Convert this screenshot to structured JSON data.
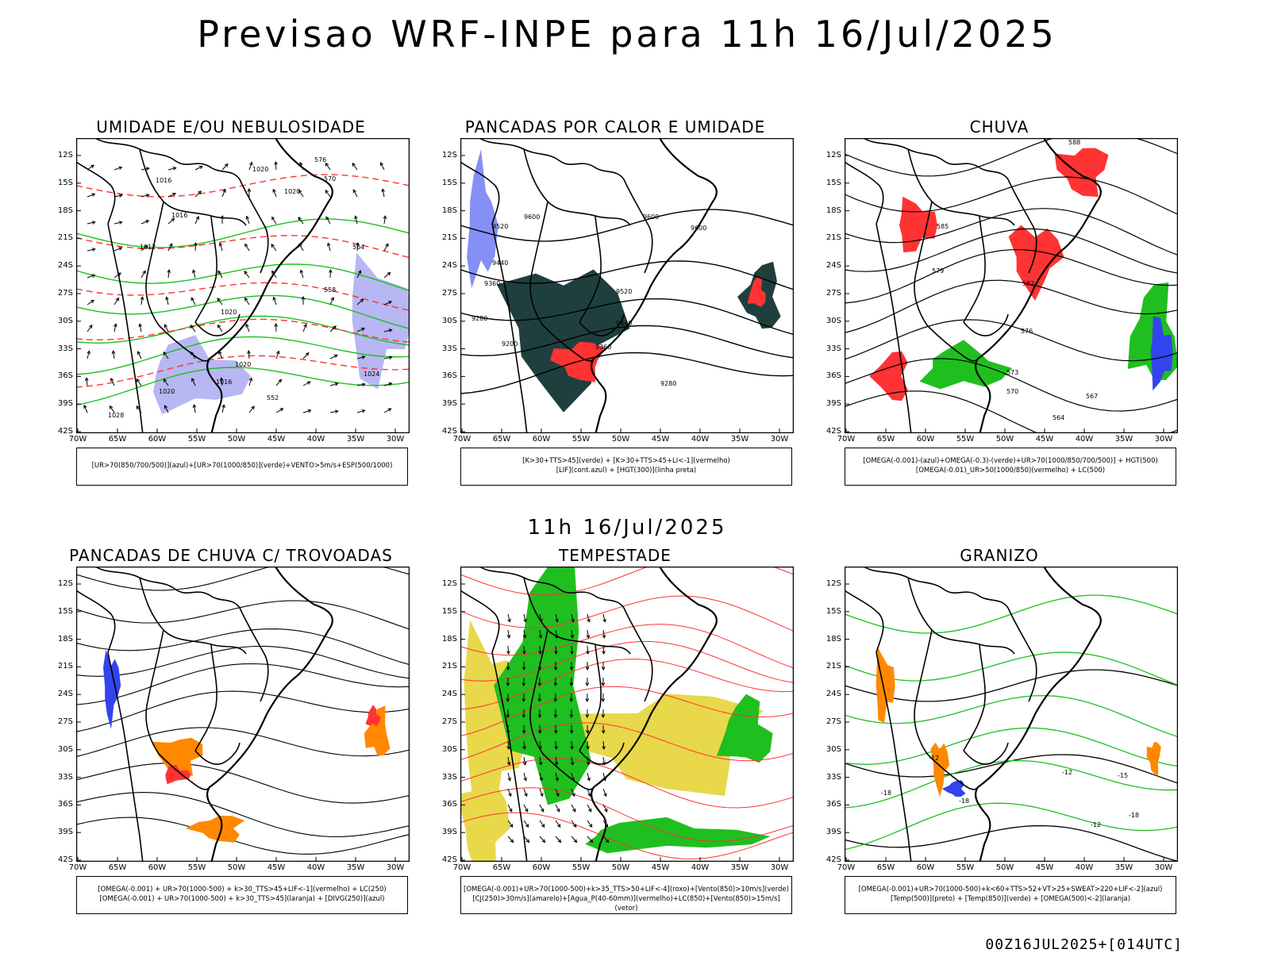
{
  "header": {
    "title": "Previsao WRF-INPE  para 11h 16/Jul/2025",
    "mid_date": "11h 16/Jul/2025",
    "run_stamp": "00Z16JUL2025+[014UTC]"
  },
  "axes": {
    "lat_labels": [
      "12S",
      "15S",
      "18S",
      "21S",
      "24S",
      "27S",
      "30S",
      "33S",
      "36S",
      "39S",
      "42S"
    ],
    "lon_labels": [
      "70W",
      "65W",
      "60W",
      "55W",
      "50W",
      "45W",
      "40W",
      "35W",
      "30W"
    ]
  },
  "colors": {
    "border": "#000000",
    "green": "#1fbf1f",
    "red": "#ff3333",
    "blue": "#3344ee",
    "lavender": "#9999ee",
    "orange": "#ff8800",
    "yellow": "#e8d84a",
    "darkteal": "#1f3f3f"
  },
  "panels": [
    {
      "title": "UMIDADE E/OU NEBULOSIDADE",
      "legend": [
        "[UR>70(850/700/500)](azul)+[UR>70(1000/850)](verde)+VENTO>5m/s+ESP(500/1000)"
      ],
      "labels": [
        "1016",
        "1020",
        "1020",
        "1016",
        "1020",
        "1012",
        "1020",
        "1024",
        "1016",
        "1020",
        "1028",
        "570",
        "564",
        "558",
        "552",
        "576"
      ]
    },
    {
      "title": "PANCADAS POR CALOR E UMIDADE",
      "legend": [
        "[K>30+TTS>45](verde) + [K>30+TTS>45+LI<-1](vermelho)",
        "[LIF](cont.azul) + [HGT(300)](linha preta)"
      ],
      "labels": [
        "9600",
        "9520",
        "9440",
        "9360",
        "9280",
        "9200",
        "9600",
        "9600",
        "9520",
        "9440",
        "9360",
        "9280"
      ]
    },
    {
      "title": "CHUVA",
      "legend": [
        "[OMEGA(-0.001)-(azul)+OMEGA(-0.3)-(verde)+UR>70(1000/850/700/500)] + HGT(500)",
        "[OMEGA(-0.01)_UR>50(1000/850)(vermelho) + LC(500)"
      ],
      "labels": [
        "588",
        "585",
        "582",
        "579",
        "576",
        "573",
        "570",
        "567",
        "564"
      ]
    },
    {
      "title": "PANCADAS DE CHUVA C/ TROVOADAS",
      "legend": [
        "[OMEGA(-0.001) + UR>70(1000-500) + k>30_TTS>45+LIF<-1](vermelho) + LC(250)",
        "[OMEGA(-0.001) + UR>70(1000-500) + k>30_TTS>45](laranja) + [DIVG(250)](azul)"
      ],
      "labels": []
    },
    {
      "title": "TEMPESTADE",
      "legend": [
        "[OMEGA(-0.001)+UR>70(1000-500)+k>35_TTS>50+LIF<-4](roxo)+[Vento(850)>10m/s](verde)",
        "[CJ(250)>30m/s](amarelo)+[Agua_P(40-60mm)](vermelho)+LC(850)+[Vento(850)>15m/s](vetor)"
      ],
      "labels": []
    },
    {
      "title": "GRANIZO",
      "legend": [
        "[OMEGA(-0.001)+UR>70(1000-500)+k<60+TTS>52+VT>25+SWEAT>220+LIF<-2](azul)",
        "[Temp(500)](preto) + [Temp(850)](verde) + [OMEGA(500)<-2](laranja)"
      ],
      "labels": [
        "-12",
        "-12",
        "-15",
        "-18",
        "-18",
        "-18",
        "-12"
      ]
    }
  ]
}
